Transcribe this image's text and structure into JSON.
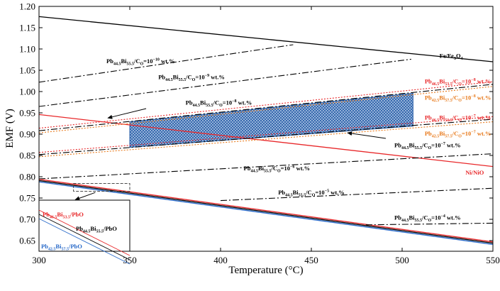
{
  "chart_data": {
    "type": "line",
    "xlabel": "Temperature (°C)",
    "ylabel": "EMF (V)",
    "xlim": [
      300,
      550
    ],
    "ylim": [
      0.625,
      1.2
    ],
    "x_ticks": [
      300,
      350,
      400,
      450,
      500,
      550
    ],
    "y_ticks": [
      0.65,
      0.7,
      0.75,
      0.8,
      0.85,
      0.9,
      0.95,
      1.0,
      1.05,
      1.1,
      1.15,
      1.2
    ],
    "x_tick_labels": [
      "300",
      "350",
      "400",
      "450",
      "500",
      "550"
    ],
    "y_tick_labels": [
      "0.65",
      "0.70",
      "0.75",
      "0.80",
      "0.85",
      "0.90",
      "0.95",
      "1.00",
      "1.05",
      "1.10",
      "1.15",
      "1.20"
    ],
    "colors": {
      "black": "#000000",
      "red": "#e8282a",
      "orange": "#e87a1c",
      "blue": "#2b6bc9",
      "shade": "#2a5fa8",
      "purple": "#9b3aa8"
    },
    "series": [
      {
        "name": "Fe/Fe3O4",
        "color": "black",
        "style": "solid",
        "width": 1.3,
        "x": [
          300,
          550
        ],
        "y": [
          1.176,
          1.07
        ]
      },
      {
        "name": "Ni/NiO",
        "color": "red",
        "style": "solid",
        "width": 1.3,
        "x": [
          300,
          550
        ],
        "y": [
          0.946,
          0.824
        ]
      },
      {
        "name": "Pb44.5Bi55.5/PbO",
        "color": "black",
        "style": "solid",
        "width": 1.4,
        "x": [
          300,
          550
        ],
        "y": [
          0.791,
          0.644
        ]
      },
      {
        "name": "Pb46.5Bi53.5/PbO",
        "color": "red",
        "style": "solid",
        "width": 1.4,
        "x": [
          300,
          550
        ],
        "y": [
          0.794,
          0.647
        ]
      },
      {
        "name": "Pb42.5Bi57.5/PbO",
        "color": "blue",
        "style": "solid",
        "width": 1.4,
        "x": [
          300,
          550
        ],
        "y": [
          0.788,
          0.641
        ]
      },
      {
        "name": "CO=10^-10",
        "color": "black",
        "style": "dashdot",
        "width": 1.1,
        "x": [
          300,
          440
        ],
        "y": [
          1.022,
          1.11
        ]
      },
      {
        "name": "CO=10^-9",
        "color": "black",
        "style": "dashdot",
        "width": 1.1,
        "x": [
          300,
          505
        ],
        "y": [
          0.965,
          1.076
        ]
      },
      {
        "name": "CO=10^-8",
        "color": "black",
        "style": "dashdot",
        "width": 1.1,
        "x": [
          300,
          550
        ],
        "y": [
          0.908,
          1.017
        ]
      },
      {
        "name": "CO=10^-7",
        "color": "black",
        "style": "dashdot",
        "width": 1.1,
        "x": [
          300,
          550
        ],
        "y": [
          0.852,
          0.935
        ]
      },
      {
        "name": "CO=10^-6",
        "color": "black",
        "style": "dashdot",
        "width": 1.1,
        "x": [
          300,
          550
        ],
        "y": [
          0.795,
          0.854
        ]
      },
      {
        "name": "CO=10^-5",
        "color": "black",
        "style": "dashdot",
        "width": 1.1,
        "x": [
          400,
          550
        ],
        "y": [
          0.744,
          0.773
        ]
      },
      {
        "name": "CO=10^-4",
        "color": "black",
        "style": "dashdot",
        "width": 1.1,
        "x": [
          480,
          550
        ],
        "y": [
          0.687,
          0.691
        ]
      },
      {
        "name": "Pb46.5Bi53.5 CO=10^-8",
        "color": "red",
        "style": "dotted",
        "width": 1.1,
        "x": [
          300,
          550
        ],
        "y": [
          0.914,
          1.023
        ]
      },
      {
        "name": "Pb42.5Bi57.5 CO=10^-8",
        "color": "orange",
        "style": "dotted",
        "width": 1.1,
        "x": [
          300,
          550
        ],
        "y": [
          0.903,
          1.012
        ]
      },
      {
        "name": "Pb46.5Bi53.5 CO=10^-7",
        "color": "red",
        "style": "dotted",
        "width": 1.1,
        "x": [
          300,
          550
        ],
        "y": [
          0.857,
          0.941
        ]
      },
      {
        "name": "Pb42.5Bi57.5 CO=10^-7",
        "color": "orange",
        "style": "dotted",
        "width": 1.1,
        "x": [
          300,
          550
        ],
        "y": [
          0.847,
          0.929
        ]
      }
    ],
    "shaded_region": {
      "x": [
        350,
        350,
        506,
        506
      ],
      "y": [
        0.869,
        0.929,
        0.996,
        0.919
      ]
    },
    "dashed_box": {
      "x": [
        319,
        350
      ],
      "y": [
        0.766,
        0.784
      ]
    },
    "annotations": [
      {
        "id": "fe",
        "parts": [
          [
            "Fe/Fe",
            ""
          ],
          [
            "3",
            "sub"
          ],
          [
            "O",
            ""
          ],
          [
            "4",
            "sub"
          ]
        ],
        "color": "black",
        "x": 527,
        "y": 1.084,
        "anchor": "middle"
      },
      {
        "id": "ni",
        "parts": [
          [
            "Ni/NiO",
            ""
          ]
        ],
        "color": "red",
        "x": 540,
        "y": 0.81,
        "anchor": "middle"
      },
      {
        "id": "c10",
        "parts": [
          [
            "Pb",
            ""
          ],
          [
            "44.5",
            "sub"
          ],
          [
            "Bi",
            ""
          ],
          [
            "55.5",
            "sub"
          ],
          [
            "/C",
            ""
          ],
          [
            "O",
            "sub"
          ],
          [
            "=10",
            ""
          ],
          [
            "−10",
            "sup"
          ],
          [
            " wt.%",
            ""
          ]
        ],
        "color": "black",
        "x": 356,
        "y": 1.072,
        "anchor": "middle"
      },
      {
        "id": "c9",
        "parts": [
          [
            "Pb",
            ""
          ],
          [
            "44.5",
            "sub"
          ],
          [
            "Bi",
            ""
          ],
          [
            "55.5",
            "sub"
          ],
          [
            "/C",
            ""
          ],
          [
            "O",
            "sub"
          ],
          [
            "=10",
            ""
          ],
          [
            "−9",
            "sup"
          ],
          [
            " wt.%",
            ""
          ]
        ],
        "color": "black",
        "x": 384,
        "y": 1.034,
        "anchor": "middle"
      },
      {
        "id": "c8",
        "parts": [
          [
            "Pb",
            ""
          ],
          [
            "44.5",
            "sub"
          ],
          [
            "Bi",
            ""
          ],
          [
            "55.5",
            "sub"
          ],
          [
            "/C",
            ""
          ],
          [
            "O",
            "sub"
          ],
          [
            "=10",
            ""
          ],
          [
            "−8",
            "sup"
          ],
          [
            " wt.%",
            ""
          ]
        ],
        "color": "black",
        "x": 399,
        "y": 0.974,
        "anchor": "middle"
      },
      {
        "id": "c7",
        "parts": [
          [
            "Pb",
            ""
          ],
          [
            "44.5",
            "sub"
          ],
          [
            "Bi",
            ""
          ],
          [
            "55.5",
            "sub"
          ],
          [
            "/C",
            ""
          ],
          [
            "O",
            "sub"
          ],
          [
            "=10",
            ""
          ],
          [
            "−7",
            "sup"
          ],
          [
            " wt.%",
            ""
          ]
        ],
        "color": "black",
        "x": 514,
        "y": 0.874,
        "anchor": "middle"
      },
      {
        "id": "c6",
        "parts": [
          [
            "Pb",
            ""
          ],
          [
            "44.5",
            "sub"
          ],
          [
            "Bi",
            ""
          ],
          [
            "55.5",
            "sub"
          ],
          [
            "/C",
            ""
          ],
          [
            "O",
            "sub"
          ],
          [
            "=10",
            ""
          ],
          [
            "−6",
            "sup"
          ],
          [
            " wt.%",
            ""
          ]
        ],
        "color": "black",
        "x": 431,
        "y": 0.82,
        "anchor": "middle"
      },
      {
        "id": "c5",
        "parts": [
          [
            "Pb",
            ""
          ],
          [
            "44.5",
            "sub"
          ],
          [
            "Bi",
            ""
          ],
          [
            "55.5",
            "sub"
          ],
          [
            "/C",
            ""
          ],
          [
            "O",
            "sub"
          ],
          [
            "=10",
            ""
          ],
          [
            "−5",
            "sup"
          ],
          [
            " wt.%",
            ""
          ]
        ],
        "color": "black",
        "x": 450,
        "y": 0.763,
        "anchor": "middle"
      },
      {
        "id": "c4",
        "parts": [
          [
            "Pb",
            ""
          ],
          [
            "44.5",
            "sub"
          ],
          [
            "Bi",
            ""
          ],
          [
            "55.5",
            "sub"
          ],
          [
            "/C",
            ""
          ],
          [
            "O",
            "sub"
          ],
          [
            "=10",
            ""
          ],
          [
            "−4",
            "sup"
          ],
          [
            " wt.%",
            ""
          ]
        ],
        "color": "black",
        "x": 514,
        "y": 0.704,
        "anchor": "middle"
      },
      {
        "id": "r8",
        "parts": [
          [
            "Pb",
            ""
          ],
          [
            "46.5",
            "sub"
          ],
          [
            "Bi",
            ""
          ],
          [
            "53.5",
            "sub"
          ],
          [
            "/C",
            ""
          ],
          [
            "O",
            "sub"
          ],
          [
            "=10",
            ""
          ],
          [
            "−8",
            "sup"
          ],
          [
            " wt.%",
            ""
          ]
        ],
        "color": "red",
        "x": 549,
        "y": 1.024,
        "anchor": "end"
      },
      {
        "id": "o8",
        "parts": [
          [
            "Pb",
            ""
          ],
          [
            "42.5",
            "sub"
          ],
          [
            "Bi",
            ""
          ],
          [
            "57.5",
            "sub"
          ],
          [
            "/C",
            ""
          ],
          [
            "O",
            "sub"
          ],
          [
            "=10",
            ""
          ],
          [
            "−8",
            "sup"
          ],
          [
            " wt.%",
            ""
          ]
        ],
        "color": "orange",
        "x": 549,
        "y": 0.986,
        "anchor": "end"
      },
      {
        "id": "r7",
        "parts": [
          [
            "Pb",
            ""
          ],
          [
            "46.5",
            "sub"
          ],
          [
            "Bi",
            ""
          ],
          [
            "53.5",
            "sub"
          ],
          [
            "/C",
            ""
          ],
          [
            "O",
            "sub"
          ],
          [
            "=10",
            ""
          ],
          [
            "−7",
            "sup"
          ],
          [
            " wt.%",
            ""
          ]
        ],
        "color": "red",
        "x": 549,
        "y": 0.939,
        "anchor": "end"
      },
      {
        "id": "o7",
        "parts": [
          [
            "Pb",
            ""
          ],
          [
            "42.5",
            "sub"
          ],
          [
            "Bi",
            ""
          ],
          [
            "57.5",
            "sub"
          ],
          [
            "/C",
            ""
          ],
          [
            "O",
            "sub"
          ],
          [
            "=10",
            ""
          ],
          [
            "−7",
            "sup"
          ],
          [
            " wt.%",
            ""
          ]
        ],
        "color": "orange",
        "x": 549,
        "y": 0.902,
        "anchor": "end"
      }
    ],
    "arrows": [
      {
        "from": [
          359,
          0.96
        ],
        "to": [
          338,
          0.938
        ]
      },
      {
        "from": [
          491,
          0.89
        ],
        "to": [
          470,
          0.903
        ]
      },
      {
        "from": [
          331,
          0.763
        ],
        "to": [
          320,
          0.746
        ]
      }
    ],
    "inset": {
      "lines": [
        {
          "name": "Pb46.5Bi53.5/PbO",
          "color": "red"
        },
        {
          "name": "Pb44.5Bi55.5/PbO",
          "color": "black"
        },
        {
          "name": "Pb42.5Bi57.5/PbO",
          "color": "blue"
        }
      ],
      "labels": [
        {
          "id": "in-red",
          "parts": [
            [
              "Pb",
              ""
            ],
            [
              "46.5",
              "sub"
            ],
            [
              "Bi",
              ""
            ],
            [
              "53.5",
              "sub"
            ],
            [
              "/PbO",
              ""
            ]
          ],
          "color": "red"
        },
        {
          "id": "in-black",
          "parts": [
            [
              "Pb",
              ""
            ],
            [
              "44.5",
              "sub"
            ],
            [
              "Bi",
              ""
            ],
            [
              "55.5",
              "sub"
            ],
            [
              "/PbO",
              ""
            ]
          ],
          "color": "black"
        },
        {
          "id": "in-blue",
          "parts": [
            [
              "Pb",
              ""
            ],
            [
              "42.5",
              "sub"
            ],
            [
              "Bi",
              ""
            ],
            [
              "57.5",
              "sub"
            ],
            [
              "/PbO",
              ""
            ]
          ],
          "color": "blue"
        }
      ]
    }
  }
}
